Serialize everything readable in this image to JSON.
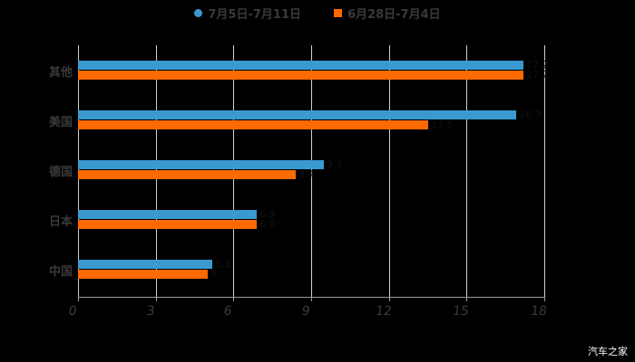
{
  "legend": [
    {
      "label": "7月5日-7月11日",
      "color": "#3a9ad0",
      "shape": "circle"
    },
    {
      "label": "6月28日-7月4日",
      "color": "#ff6a00",
      "shape": "square"
    }
  ],
  "x_ticks": [
    "0",
    "3",
    "6",
    "9",
    "12",
    "15",
    "18"
  ],
  "categories": [
    "其他",
    "美国",
    "德国",
    "日本",
    "中国"
  ],
  "watermark": "汽车之家",
  "chart_data": {
    "type": "bar",
    "orientation": "horizontal",
    "title": "",
    "categories": [
      "其他",
      "美国",
      "德国",
      "日本",
      "中国"
    ],
    "series": [
      {
        "name": "7月5日-7月11日",
        "color": "#3a9ad0",
        "values": [
          17.2,
          16.9,
          9.5,
          6.9,
          5.2
        ]
      },
      {
        "name": "6月28日-7月4日",
        "color": "#ff6a00",
        "values": [
          17.2,
          13.5,
          8.4,
          6.9,
          5.0
        ]
      }
    ],
    "xlabel": "",
    "ylabel": "",
    "xlim": [
      0,
      18
    ],
    "x_ticks": [
      0,
      3,
      6,
      9,
      12,
      15,
      18
    ],
    "grid": "vertical",
    "legend_position": "top"
  }
}
